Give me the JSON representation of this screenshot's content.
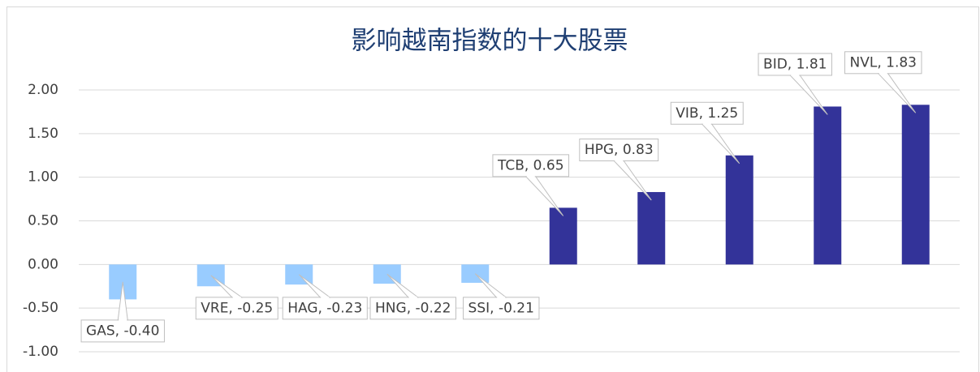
{
  "chart_data": {
    "type": "bar",
    "title": "影响越南指数的十大股票",
    "values": [
      -0.4,
      -0.25,
      -0.23,
      -0.22,
      -0.21,
      0.65,
      0.83,
      1.25,
      1.81,
      1.83
    ],
    "value_labels": [
      "GAS, -0.40",
      "VRE, -0.25",
      "HAG, -0.23",
      "HNG, -0.22",
      "SSI, -0.21",
      "TCB, 0.65",
      "HPG, 0.83",
      "VIB, 1.25",
      "BID, 1.81",
      "NVL, 1.83"
    ],
    "color": "#333399",
    "negative_color": "#99ccff",
    "ylim": [
      -1,
      2
    ],
    "yticks": [
      {
        "value": -1,
        "label": "-1.00"
      },
      {
        "value": -0.5,
        "label": "-0.50"
      },
      {
        "value": 0,
        "label": "0.00"
      },
      {
        "value": 0.5,
        "label": "0.50"
      },
      {
        "value": 1,
        "label": "1.00"
      },
      {
        "value": 1.5,
        "label": "1.50"
      },
      {
        "value": 2,
        "label": "2.00"
      }
    ],
    "grid": true
  }
}
